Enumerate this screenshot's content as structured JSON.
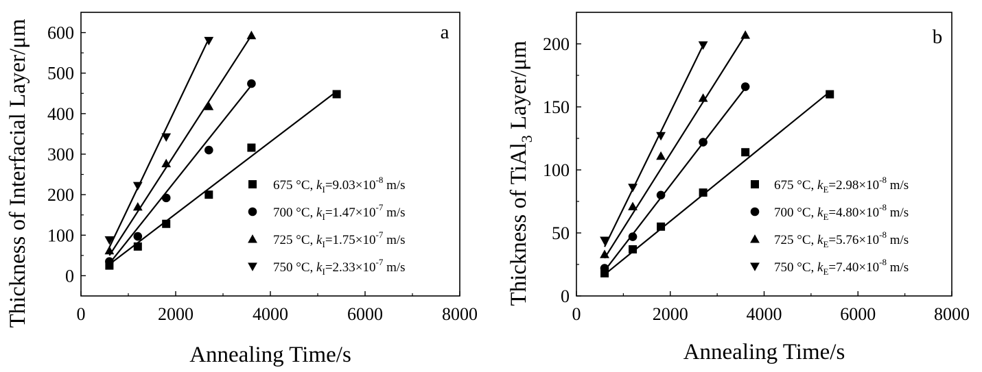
{
  "chart_data": [
    {
      "type": "scatter",
      "panel_label": "a",
      "xlabel": "Annealing Time/s",
      "ylabel": "Thickness of Interfacial Layer/μm",
      "xlim": [
        0,
        8000
      ],
      "ylim": [
        -50,
        650
      ],
      "xticks": [
        0,
        2000,
        4000,
        6000,
        8000
      ],
      "yticks": [
        0,
        100,
        200,
        300,
        400,
        500,
        600
      ],
      "legend_position": "bottom-right",
      "series": [
        {
          "name": "675 °C",
          "marker": "square",
          "k_symbol": "k",
          "k_sub": "I",
          "k_value": "9.03×10",
          "k_exp": "-8",
          "k_unit": "m/s",
          "x": [
            600,
            1200,
            1800,
            2700,
            3600,
            5400
          ],
          "y": [
            25,
            72,
            128,
            200,
            316,
            448
          ],
          "fit": [
            [
              600,
              28
            ],
            [
              5400,
              455
            ]
          ]
        },
        {
          "name": "700 °C",
          "marker": "circle",
          "k_symbol": "k",
          "k_sub": "I",
          "k_value": "1.47×10",
          "k_exp": "-7",
          "k_unit": "m/s",
          "x": [
            600,
            1200,
            1800,
            2700,
            3600
          ],
          "y": [
            35,
            97,
            192,
            310,
            474
          ],
          "fit": [
            [
              600,
              30
            ],
            [
              3600,
              470
            ]
          ]
        },
        {
          "name": "725 °C",
          "marker": "triangle-up",
          "k_symbol": "k",
          "k_sub": "I",
          "k_value": "1.75×10",
          "k_exp": "-7",
          "k_unit": "m/s",
          "x": [
            600,
            1200,
            1800,
            2700,
            3600
          ],
          "y": [
            62,
            170,
            277,
            418,
            593
          ],
          "fit": [
            [
              600,
              50
            ],
            [
              3600,
              593
            ]
          ]
        },
        {
          "name": "750 °C",
          "marker": "triangle-down",
          "k_symbol": "k",
          "k_sub": "I",
          "k_value": "2.33×10",
          "k_exp": "-7",
          "k_unit": "m/s",
          "x": [
            600,
            1200,
            1800,
            2700
          ],
          "y": [
            88,
            222,
            342,
            580
          ],
          "fit": [
            [
              600,
              70
            ],
            [
              2700,
              585
            ]
          ]
        }
      ]
    },
    {
      "type": "scatter",
      "panel_label": "b",
      "xlabel": "Annealing Time/s",
      "ylabel_parts": [
        "Thickness of TiAl",
        "3",
        " Layer/μm"
      ],
      "xlim": [
        0,
        8000
      ],
      "ylim": [
        0,
        225
      ],
      "xticks": [
        0,
        2000,
        4000,
        6000,
        8000
      ],
      "yticks": [
        0,
        50,
        100,
        150,
        200
      ],
      "legend_position": "bottom-right",
      "series": [
        {
          "name": "675 °C",
          "marker": "square",
          "k_symbol": "k",
          "k_sub": "E",
          "k_value": "2.98×10",
          "k_exp": "-8",
          "k_unit": "m/s",
          "x": [
            600,
            1200,
            1800,
            2700,
            3600,
            5400
          ],
          "y": [
            18,
            37,
            55,
            82,
            114,
            160
          ],
          "fit": [
            [
              600,
              17
            ],
            [
              5400,
              162
            ]
          ]
        },
        {
          "name": "700 °C",
          "marker": "circle",
          "k_symbol": "k",
          "k_sub": "E",
          "k_value": "4.80×10",
          "k_exp": "-8",
          "k_unit": "m/s",
          "x": [
            600,
            1200,
            1800,
            2700,
            3600
          ],
          "y": [
            22,
            47,
            80,
            122,
            166
          ],
          "fit": [
            [
              600,
              20
            ],
            [
              3600,
              165
            ]
          ]
        },
        {
          "name": "725 °C",
          "marker": "triangle-up",
          "k_symbol": "k",
          "k_sub": "E",
          "k_value": "5.76×10",
          "k_exp": "-8",
          "k_unit": "m/s",
          "x": [
            600,
            1200,
            1800,
            2700,
            3600
          ],
          "y": [
            33,
            71,
            111,
            157,
            207
          ],
          "fit": [
            [
              600,
              30
            ],
            [
              3600,
              207
            ]
          ]
        },
        {
          "name": "750 °C",
          "marker": "triangle-down",
          "k_symbol": "k",
          "k_sub": "E",
          "k_value": "7.40×10",
          "k_exp": "-8",
          "k_unit": "m/s",
          "x": [
            600,
            1200,
            1800,
            2700
          ],
          "y": [
            44,
            86,
            127,
            199
          ],
          "fit": [
            [
              600,
              39
            ],
            [
              2700,
              199
            ]
          ]
        }
      ]
    }
  ]
}
